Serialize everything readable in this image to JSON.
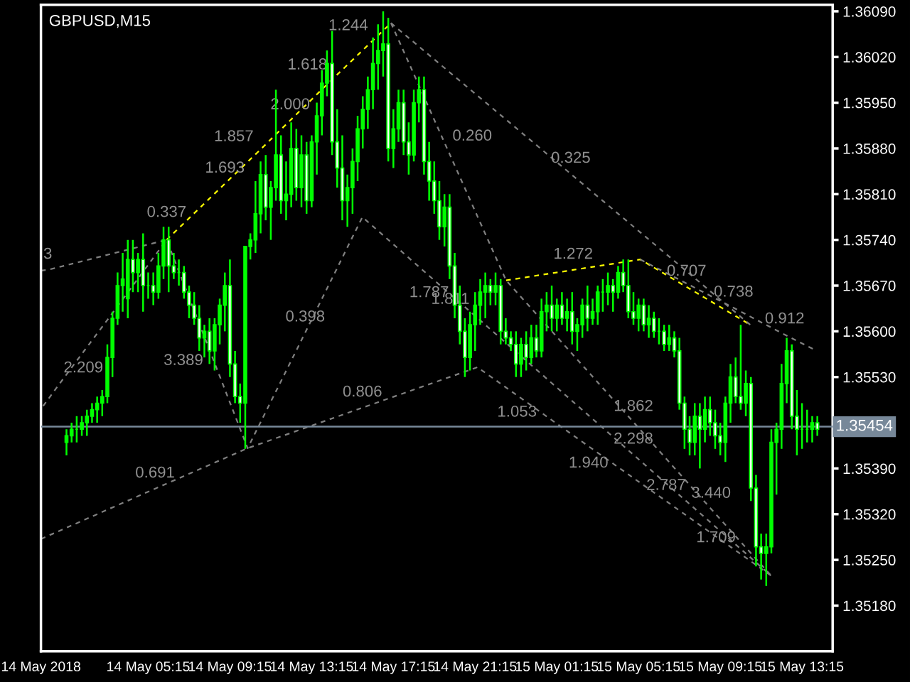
{
  "chart_data": {
    "type": "candlestick",
    "title": "GBPUSD,M15",
    "color": "#00ff00",
    "grid": false,
    "x": [
      "2018-05-14T01:15",
      "2018-05-14T01:30",
      "2018-05-14T01:45",
      "2018-05-14T02:00",
      "2018-05-14T02:15",
      "2018-05-14T02:30",
      "2018-05-14T02:45",
      "2018-05-14T03:00",
      "2018-05-14T03:15",
      "2018-05-14T03:30",
      "2018-05-14T03:45",
      "2018-05-14T04:00",
      "2018-05-14T04:15",
      "2018-05-14T04:30",
      "2018-05-14T04:45",
      "2018-05-14T05:00",
      "2018-05-14T05:15",
      "2018-05-14T05:30",
      "2018-05-14T05:45",
      "2018-05-14T06:00",
      "2018-05-14T06:15",
      "2018-05-14T06:30",
      "2018-05-14T06:45",
      "2018-05-14T07:00",
      "2018-05-14T07:15",
      "2018-05-14T07:30",
      "2018-05-14T07:45",
      "2018-05-14T08:00",
      "2018-05-14T08:15",
      "2018-05-14T08:30",
      "2018-05-14T08:45",
      "2018-05-14T09:00",
      "2018-05-14T09:15",
      "2018-05-14T09:30",
      "2018-05-14T09:45",
      "2018-05-14T10:00",
      "2018-05-14T10:15",
      "2018-05-14T10:30",
      "2018-05-14T10:45",
      "2018-05-14T11:00",
      "2018-05-14T11:15",
      "2018-05-14T11:30",
      "2018-05-14T11:45",
      "2018-05-14T12:00",
      "2018-05-14T12:15",
      "2018-05-14T12:30",
      "2018-05-14T12:45",
      "2018-05-14T13:00",
      "2018-05-14T13:15",
      "2018-05-14T13:30",
      "2018-05-14T13:45",
      "2018-05-14T14:00",
      "2018-05-14T14:15",
      "2018-05-14T14:30",
      "2018-05-14T14:45",
      "2018-05-14T15:00",
      "2018-05-14T15:15",
      "2018-05-14T15:30",
      "2018-05-14T15:45",
      "2018-05-14T16:00",
      "2018-05-14T16:15",
      "2018-05-14T16:30",
      "2018-05-14T16:45",
      "2018-05-14T17:00",
      "2018-05-14T17:15",
      "2018-05-14T17:30",
      "2018-05-14T17:45",
      "2018-05-14T18:00",
      "2018-05-14T18:15",
      "2018-05-14T18:30",
      "2018-05-14T18:45",
      "2018-05-14T19:00",
      "2018-05-14T19:15",
      "2018-05-14T19:30",
      "2018-05-14T19:45",
      "2018-05-14T20:00",
      "2018-05-14T20:15",
      "2018-05-14T20:30",
      "2018-05-14T20:45",
      "2018-05-14T21:00",
      "2018-05-14T21:15",
      "2018-05-14T21:30",
      "2018-05-14T21:45",
      "2018-05-14T22:00",
      "2018-05-14T22:15",
      "2018-05-14T22:30",
      "2018-05-14T22:45",
      "2018-05-14T23:00",
      "2018-05-14T23:15",
      "2018-05-14T23:30",
      "2018-05-14T23:45",
      "2018-05-15T00:00",
      "2018-05-15T00:15",
      "2018-05-15T00:30",
      "2018-05-15T00:45",
      "2018-05-15T01:00",
      "2018-05-15T01:15",
      "2018-05-15T01:30",
      "2018-05-15T01:45",
      "2018-05-15T02:00",
      "2018-05-15T02:15",
      "2018-05-15T02:30",
      "2018-05-15T02:45",
      "2018-05-15T03:00",
      "2018-05-15T03:15",
      "2018-05-15T03:30",
      "2018-05-15T03:45",
      "2018-05-15T04:00",
      "2018-05-15T04:15",
      "2018-05-15T04:30",
      "2018-05-15T04:45",
      "2018-05-15T05:00",
      "2018-05-15T05:15",
      "2018-05-15T05:30",
      "2018-05-15T05:45",
      "2018-05-15T06:00",
      "2018-05-15T06:15",
      "2018-05-15T06:30",
      "2018-05-15T06:45",
      "2018-05-15T07:00",
      "2018-05-15T07:15",
      "2018-05-15T07:30",
      "2018-05-15T07:45",
      "2018-05-15T08:00",
      "2018-05-15T08:15",
      "2018-05-15T08:30",
      "2018-05-15T08:45",
      "2018-05-15T09:00",
      "2018-05-15T09:15",
      "2018-05-15T09:30",
      "2018-05-15T09:45",
      "2018-05-15T10:00",
      "2018-05-15T10:15",
      "2018-05-15T10:30",
      "2018-05-15T10:45",
      "2018-05-15T11:00",
      "2018-05-15T11:15",
      "2018-05-15T11:30",
      "2018-05-15T11:45",
      "2018-05-15T12:00",
      "2018-05-15T12:15",
      "2018-05-15T12:30",
      "2018-05-15T12:45",
      "2018-05-15T13:00",
      "2018-05-15T13:15",
      "2018-05-15T13:30",
      "2018-05-15T13:45",
      "2018-05-15T14:00"
    ],
    "ohlc": [
      [
        1.3543,
        1.3545,
        1.3541,
        1.3544
      ],
      [
        1.3544,
        1.3546,
        1.3543,
        1.3545
      ],
      [
        1.3545,
        1.3547,
        1.3543,
        1.3545
      ],
      [
        1.3545,
        1.3547,
        1.3544,
        1.3546
      ],
      [
        1.3546,
        1.3548,
        1.3544,
        1.3547
      ],
      [
        1.3547,
        1.3549,
        1.3546,
        1.3548
      ],
      [
        1.3548,
        1.355,
        1.3546,
        1.3549
      ],
      [
        1.3549,
        1.3551,
        1.3547,
        1.355
      ],
      [
        1.355,
        1.3558,
        1.3549,
        1.3556
      ],
      [
        1.3556,
        1.3563,
        1.3553,
        1.3562
      ],
      [
        1.3562,
        1.3569,
        1.3561,
        1.3567
      ],
      [
        1.3567,
        1.3572,
        1.3563,
        1.3568
      ],
      [
        1.3565,
        1.3574,
        1.3562,
        1.3571
      ],
      [
        1.3571,
        1.3574,
        1.3566,
        1.3569
      ],
      [
        1.3569,
        1.3572,
        1.3566,
        1.3571
      ],
      [
        1.3571,
        1.3575,
        1.3563,
        1.3567
      ],
      [
        1.3567,
        1.3569,
        1.3565,
        1.3567
      ],
      [
        1.3567,
        1.3569,
        1.3564,
        1.3566
      ],
      [
        1.3566,
        1.3572,
        1.3565,
        1.357
      ],
      [
        1.357,
        1.3576,
        1.3568,
        1.3574
      ],
      [
        1.3574,
        1.3576,
        1.3566,
        1.357
      ],
      [
        1.357,
        1.3572,
        1.3568,
        1.3569
      ],
      [
        1.3569,
        1.3571,
        1.3567,
        1.3569
      ],
      [
        1.3569,
        1.357,
        1.3565,
        1.3566
      ],
      [
        1.3566,
        1.3567,
        1.3562,
        1.3564
      ],
      [
        1.3564,
        1.3566,
        1.3561,
        1.3562
      ],
      [
        1.3562,
        1.3564,
        1.3557,
        1.3559
      ],
      [
        1.3559,
        1.3561,
        1.3556,
        1.356
      ],
      [
        1.356,
        1.3562,
        1.3555,
        1.3557
      ],
      [
        1.3557,
        1.3562,
        1.3554,
        1.3561
      ],
      [
        1.3561,
        1.3565,
        1.3558,
        1.3564
      ],
      [
        1.3564,
        1.3569,
        1.356,
        1.3567
      ],
      [
        1.3567,
        1.3571,
        1.3553,
        1.3555
      ],
      [
        1.3555,
        1.3557,
        1.3549,
        1.355
      ],
      [
        1.355,
        1.3552,
        1.3546,
        1.3549
      ],
      [
        1.3549,
        1.3573,
        1.3542,
        1.3573
      ],
      [
        1.3573,
        1.3575,
        1.3571,
        1.3574
      ],
      [
        1.3574,
        1.3583,
        1.3572,
        1.3578
      ],
      [
        1.3578,
        1.3586,
        1.3575,
        1.3584
      ],
      [
        1.3584,
        1.3587,
        1.3577,
        1.3579
      ],
      [
        1.3579,
        1.3583,
        1.3574,
        1.3582
      ],
      [
        1.3582,
        1.3597,
        1.358,
        1.3587
      ],
      [
        1.3587,
        1.359,
        1.3578,
        1.358
      ],
      [
        1.358,
        1.3586,
        1.3577,
        1.3581
      ],
      [
        1.3581,
        1.3592,
        1.3579,
        1.3588
      ],
      [
        1.3588,
        1.3591,
        1.358,
        1.3582
      ],
      [
        1.3582,
        1.359,
        1.3579,
        1.3587
      ],
      [
        1.3587,
        1.3589,
        1.3578,
        1.358
      ],
      [
        1.358,
        1.359,
        1.3579,
        1.3589
      ],
      [
        1.3589,
        1.3595,
        1.3584,
        1.3593
      ],
      [
        1.3593,
        1.36,
        1.359,
        1.3598
      ],
      [
        1.3598,
        1.3603,
        1.3596,
        1.3601
      ],
      [
        1.3601,
        1.3606,
        1.3587,
        1.3589
      ],
      [
        1.3589,
        1.3594,
        1.3582,
        1.3585
      ],
      [
        1.3585,
        1.359,
        1.3577,
        1.358
      ],
      [
        1.358,
        1.3584,
        1.3576,
        1.3582
      ],
      [
        1.3582,
        1.3588,
        1.3578,
        1.3586
      ],
      [
        1.3586,
        1.3593,
        1.3583,
        1.3591
      ],
      [
        1.3591,
        1.3596,
        1.3588,
        1.3594
      ],
      [
        1.3594,
        1.3599,
        1.3591,
        1.3597
      ],
      [
        1.3597,
        1.3605,
        1.3594,
        1.3601
      ],
      [
        1.3601,
        1.3607,
        1.3597,
        1.3603
      ],
      [
        1.3603,
        1.3609,
        1.3599,
        1.3604
      ],
      [
        1.3604,
        1.3608,
        1.3586,
        1.3588
      ],
      [
        1.3588,
        1.3594,
        1.3585,
        1.3591
      ],
      [
        1.3591,
        1.3597,
        1.3589,
        1.3595
      ],
      [
        1.3595,
        1.3597,
        1.3587,
        1.3589
      ],
      [
        1.3589,
        1.3592,
        1.3584,
        1.3587
      ],
      [
        1.3587,
        1.3597,
        1.3586,
        1.3595
      ],
      [
        1.3595,
        1.3599,
        1.3592,
        1.3597
      ],
      [
        1.3597,
        1.3599,
        1.3584,
        1.3586
      ],
      [
        1.3586,
        1.3589,
        1.358,
        1.3583
      ],
      [
        1.3583,
        1.3586,
        1.3578,
        1.358
      ],
      [
        1.358,
        1.3583,
        1.3574,
        1.3576
      ],
      [
        1.3576,
        1.3581,
        1.3573,
        1.3579
      ],
      [
        1.3579,
        1.3581,
        1.3568,
        1.357
      ],
      [
        1.357,
        1.3572,
        1.3562,
        1.3564
      ],
      [
        1.3564,
        1.3567,
        1.3558,
        1.356
      ],
      [
        1.356,
        1.3562,
        1.3553,
        1.3556
      ],
      [
        1.3556,
        1.3563,
        1.3554,
        1.3561
      ],
      [
        1.3561,
        1.3566,
        1.3557,
        1.3564
      ],
      [
        1.3564,
        1.3568,
        1.3561,
        1.3566
      ],
      [
        1.3566,
        1.3569,
        1.3562,
        1.3567
      ],
      [
        1.3567,
        1.3568,
        1.3564,
        1.3566
      ],
      [
        1.3566,
        1.3569,
        1.3564,
        1.3567
      ],
      [
        1.3567,
        1.3568,
        1.3558,
        1.356
      ],
      [
        1.356,
        1.3562,
        1.3558,
        1.3559
      ],
      [
        1.3559,
        1.356,
        1.3557,
        1.3558
      ],
      [
        1.3558,
        1.356,
        1.3553,
        1.3555
      ],
      [
        1.3555,
        1.3559,
        1.3553,
        1.3558
      ],
      [
        1.3558,
        1.356,
        1.3554,
        1.3556
      ],
      [
        1.3556,
        1.3561,
        1.3555,
        1.3559
      ],
      [
        1.3559,
        1.3561,
        1.3556,
        1.3557
      ],
      [
        1.3557,
        1.3565,
        1.3556,
        1.3563
      ],
      [
        1.3563,
        1.3566,
        1.356,
        1.3564
      ],
      [
        1.3564,
        1.3567,
        1.356,
        1.3562
      ],
      [
        1.3562,
        1.3565,
        1.356,
        1.3564
      ],
      [
        1.3564,
        1.3566,
        1.3561,
        1.3562
      ],
      [
        1.3562,
        1.3565,
        1.356,
        1.3563
      ],
      [
        1.3563,
        1.3566,
        1.3558,
        1.356
      ],
      [
        1.356,
        1.3562,
        1.3557,
        1.3561
      ],
      [
        1.3561,
        1.3565,
        1.3559,
        1.3564
      ],
      [
        1.3564,
        1.3567,
        1.356,
        1.3562
      ],
      [
        1.3562,
        1.3565,
        1.3561,
        1.3563
      ],
      [
        1.3563,
        1.3567,
        1.3561,
        1.3566
      ],
      [
        1.3566,
        1.3568,
        1.3563,
        1.3566
      ],
      [
        1.3566,
        1.3569,
        1.3564,
        1.3567
      ],
      [
        1.3567,
        1.3568,
        1.3563,
        1.3566
      ],
      [
        1.3566,
        1.357,
        1.3565,
        1.3569
      ],
      [
        1.3569,
        1.3571,
        1.3566,
        1.3567
      ],
      [
        1.3567,
        1.3571,
        1.3562,
        1.3563
      ],
      [
        1.3563,
        1.3566,
        1.3561,
        1.3562
      ],
      [
        1.3562,
        1.3565,
        1.356,
        1.3564
      ],
      [
        1.3564,
        1.3565,
        1.356,
        1.3561
      ],
      [
        1.3561,
        1.3564,
        1.3559,
        1.3562
      ],
      [
        1.3562,
        1.3563,
        1.3559,
        1.356
      ],
      [
        1.356,
        1.3562,
        1.3558,
        1.356
      ],
      [
        1.356,
        1.3561,
        1.3557,
        1.3558
      ],
      [
        1.3558,
        1.3561,
        1.3557,
        1.3559
      ],
      [
        1.3559,
        1.356,
        1.3556,
        1.3557
      ],
      [
        1.3557,
        1.3559,
        1.3548,
        1.3549
      ],
      [
        1.3549,
        1.355,
        1.3542,
        1.3545
      ],
      [
        1.3545,
        1.3547,
        1.3541,
        1.3543
      ],
      [
        1.3543,
        1.3549,
        1.3541,
        1.3547
      ],
      [
        1.3547,
        1.3549,
        1.3539,
        1.3545
      ],
      [
        1.3545,
        1.355,
        1.3543,
        1.3548
      ],
      [
        1.3548,
        1.355,
        1.3544,
        1.3546
      ],
      [
        1.3546,
        1.3548,
        1.3542,
        1.3544
      ],
      [
        1.3544,
        1.3546,
        1.3541,
        1.3543
      ],
      [
        1.3543,
        1.355,
        1.354,
        1.3549
      ],
      [
        1.3549,
        1.3555,
        1.3546,
        1.3553
      ],
      [
        1.3553,
        1.3556,
        1.3549,
        1.355
      ],
      [
        1.355,
        1.3561,
        1.3548,
        1.3549
      ],
      [
        1.3549,
        1.3554,
        1.3547,
        1.3552
      ],
      [
        1.3552,
        1.3553,
        1.3534,
        1.3536
      ],
      [
        1.3536,
        1.3538,
        1.3524,
        1.3527
      ],
      [
        1.3527,
        1.3529,
        1.3522,
        1.3526
      ],
      [
        1.3526,
        1.3529,
        1.3521,
        1.3527
      ],
      [
        1.3527,
        1.3545,
        1.3526,
        1.3543
      ],
      [
        1.3543,
        1.3546,
        1.3535,
        1.3545
      ],
      [
        1.3545,
        1.3555,
        1.3542,
        1.3552
      ],
      [
        1.3552,
        1.3559,
        1.3549,
        1.3557
      ],
      [
        1.3557,
        1.3558,
        1.3545,
        1.3547
      ],
      [
        1.3547,
        1.3551,
        1.3541,
        1.3545
      ],
      [
        1.3545,
        1.3549,
        1.3542,
        1.3545
      ],
      [
        1.3545,
        1.3548,
        1.3543,
        1.3545
      ],
      [
        1.3545,
        1.3547,
        1.3543,
        1.3546
      ],
      [
        1.3546,
        1.3547,
        1.3544,
        1.3545
      ]
    ],
    "series": [
      {
        "type": "line",
        "x": [
          "2018-05-14T06:09",
          "2018-05-14T09:00",
          "2018-05-14T10:36",
          "2018-05-14T12:12",
          "2018-05-14T14:12",
          "2018-05-14T16:12",
          "2018-05-14T17:08"
        ],
        "values": [
          1.3574,
          1.35826,
          1.35874,
          1.35923,
          1.35984,
          1.36044,
          1.36072
        ],
        "color": "#ffff00",
        "line_style": "dashed"
      },
      {
        "type": "line",
        "x": [
          "2018-05-14T22:46",
          "2018-05-15T02:03",
          "2018-05-15T05:20",
          "2018-05-15T07:36",
          "2018-05-15T10:43"
        ],
        "values": [
          1.35678,
          1.35694,
          1.3571,
          1.35668,
          1.3561
        ],
        "color": "#ffff00",
        "line_style": "dashed"
      },
      {
        "type": "line",
        "x": [
          "2018-05-14T00:00",
          "2018-05-14T00:20",
          "2018-05-14T06:09",
          "2018-05-14T03:36",
          "2018-05-14T00:55",
          "2018-05-14T00:00"
        ],
        "values": [
          1.35693,
          1.35694,
          1.3574,
          1.35632,
          1.3552,
          1.35481
        ],
        "color": "#808080",
        "line_style": "dashed"
      },
      {
        "type": "line",
        "x": [
          "2018-05-14T00:00",
          "2018-05-14T05:35",
          "2018-05-14T10:07",
          "2018-05-14T15:44",
          "2018-05-14T21:22",
          "2018-05-14T23:18",
          "2018-05-15T02:48",
          "2018-05-15T06:36",
          "2018-05-15T10:12",
          "2018-05-15T11:44",
          "2018-05-15T05:00",
          "2018-05-14T21:12",
          "2018-05-14T19:00",
          "2018-05-14T15:44",
          "2018-05-14T12:56",
          "2018-05-14T10:07",
          "2018-05-14T08:08",
          "2018-05-14T06:09"
        ],
        "values": [
          1.35282,
          1.35359,
          1.35421,
          1.35483,
          1.35545,
          1.35502,
          1.35424,
          1.3534,
          1.3526,
          1.35226,
          1.35411,
          1.35625,
          1.35685,
          1.35775,
          1.35598,
          1.35421,
          1.35581,
          1.3574
        ],
        "color": "#808080",
        "line_style": "dashed"
      },
      {
        "type": "line",
        "x": [
          "2018-05-14T17:08",
          "2018-05-14T19:57",
          "2018-05-14T22:46",
          "2018-05-15T05:00",
          "2018-05-15T08:48",
          "2018-05-15T11:44"
        ],
        "values": [
          1.36072,
          1.35875,
          1.35678,
          1.35461,
          1.35328,
          1.35226
        ],
        "color": "#808080",
        "line_style": "dashed"
      },
      {
        "type": "line",
        "x": [
          "2018-05-14T17:08",
          "2018-05-15T01:56",
          "2018-05-15T10:43"
        ],
        "values": [
          1.36072,
          1.35841,
          1.3561
        ],
        "color": "#808080",
        "line_style": "dashed"
      },
      {
        "type": "line",
        "x": [
          "2018-05-15T05:20",
          "2018-05-15T09:54",
          "2018-05-15T12:24",
          "2018-05-15T13:47"
        ],
        "values": [
          1.3571,
          1.35636,
          1.35595,
          1.35573
        ],
        "color": "#808080",
        "line_style": "dashed"
      }
    ],
    "xlim": [
      "2018-05-14T00:00",
      "2018-05-15T14:45"
    ],
    "xticks": [
      {
        "value": "2018-05-14T00:00",
        "label": "14 May 2018"
      },
      {
        "value": "2018-05-14T05:15",
        "label": "14 May 05:15"
      },
      {
        "value": "2018-05-14T09:15",
        "label": "14 May 09:15"
      },
      {
        "value": "2018-05-14T13:15",
        "label": "14 May 13:15"
      },
      {
        "value": "2018-05-14T17:15",
        "label": "14 May 17:15"
      },
      {
        "value": "2018-05-14T21:15",
        "label": "14 May 21:15"
      },
      {
        "value": "2018-05-15T01:15",
        "label": "15 May 01:15"
      },
      {
        "value": "2018-05-15T05:15",
        "label": "15 May 05:15"
      },
      {
        "value": "2018-05-15T09:15",
        "label": "15 May 09:15"
      },
      {
        "value": "2018-05-15T13:15",
        "label": "15 May 13:15"
      }
    ],
    "ylim": [
      1.3511,
      1.361
    ],
    "yticks": [
      {
        "value": 1.3518,
        "label": "1.35180"
      },
      {
        "value": 1.3525,
        "label": "1.35250"
      },
      {
        "value": 1.3532,
        "label": "1.35320"
      },
      {
        "value": 1.3539,
        "label": "1.35390"
      },
      {
        "value": 1.3553,
        "label": "1.35530"
      },
      {
        "value": 1.356,
        "label": "1.35600"
      },
      {
        "value": 1.3567,
        "label": "1.35670"
      },
      {
        "value": 1.3574,
        "label": "1.35740"
      },
      {
        "value": 1.3581,
        "label": "1.35810"
      },
      {
        "value": 1.3588,
        "label": "1.35880"
      },
      {
        "value": 1.3595,
        "label": "1.35950"
      },
      {
        "value": 1.3602,
        "label": "1.36020"
      },
      {
        "value": 1.3609,
        "label": "1.36090"
      }
    ],
    "ref_lines": [
      {
        "axis": "y",
        "value": 1.35454,
        "label": "1.35454",
        "color": "#778899"
      }
    ],
    "annotations": [
      {
        "text": "3",
        "x": "2018-05-14T00:20",
        "y": 1.35694
      },
      {
        "text": "2.209",
        "x": "2018-05-14T00:55",
        "y": 1.3552
      },
      {
        "text": "0.337",
        "x": "2018-05-14T06:09",
        "y": 1.3574
      },
      {
        "text": "3.389",
        "x": "2018-05-14T08:08",
        "y": 1.35581
      },
      {
        "text": "0.691",
        "x": "2018-05-14T05:35",
        "y": 1.35359
      },
      {
        "text": "1.693",
        "x": "2018-05-14T09:00",
        "y": 1.35826
      },
      {
        "text": "1.857",
        "x": "2018-05-14T10:36",
        "y": 1.35874
      },
      {
        "text": "2.000",
        "x": "2018-05-14T12:12",
        "y": 1.35923
      },
      {
        "text": "1.618",
        "x": "2018-05-14T14:12",
        "y": 1.35984
      },
      {
        "text": "1.244",
        "x": "2018-05-14T16:12",
        "y": 1.36044
      },
      {
        "text": "0.398",
        "x": "2018-05-14T12:56",
        "y": 1.35598
      },
      {
        "text": "0.806",
        "x": "2018-05-14T15:44",
        "y": 1.35483
      },
      {
        "text": "0.260",
        "x": "2018-05-14T19:57",
        "y": 1.35875
      },
      {
        "text": "0.325",
        "x": "2018-05-15T01:56",
        "y": 1.35841
      },
      {
        "text": "1.787",
        "x": "2018-05-14T19:00",
        "y": 1.35685
      },
      {
        "text": "1.811",
        "x": "2018-05-14T21:12",
        "y": 1.35625
      },
      {
        "text": "1.272",
        "x": "2018-05-15T02:03",
        "y": 1.35694
      },
      {
        "text": "0.707",
        "x": "2018-05-15T07:36",
        "y": 1.35668
      },
      {
        "text": "0.738",
        "x": "2018-05-15T09:54",
        "y": 1.35636
      },
      {
        "text": "0.912",
        "x": "2018-05-15T12:24",
        "y": 1.35595
      },
      {
        "text": "1.053",
        "x": "2018-05-14T23:18",
        "y": 1.35502
      },
      {
        "text": "1.940",
        "x": "2018-05-15T02:48",
        "y": 1.35424
      },
      {
        "text": "1.862",
        "x": "2018-05-15T05:00",
        "y": 1.35461
      },
      {
        "text": "2.298",
        "x": "2018-05-15T05:00",
        "y": 1.35411
      },
      {
        "text": "3.440",
        "x": "2018-05-15T08:48",
        "y": 1.35328
      },
      {
        "text": "2.787",
        "x": "2018-05-15T06:36",
        "y": 1.3534
      },
      {
        "text": "1.709",
        "x": "2018-05-15T10:12",
        "y": 1.3526
      }
    ]
  }
}
